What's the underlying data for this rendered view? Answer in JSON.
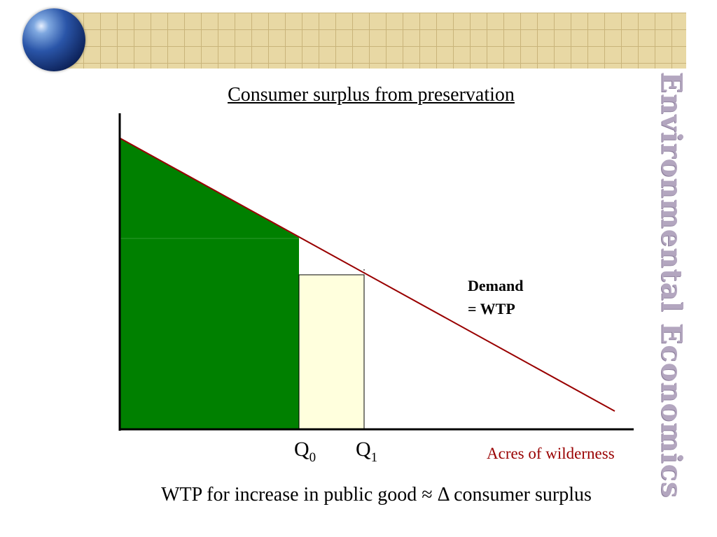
{
  "header": {
    "side_title": "Environmental Economics"
  },
  "slide": {
    "title": "Consumer surplus from preservation",
    "caption": "WTP for increase in public good ≈ Δ consumer surplus"
  },
  "diagram": {
    "demand_label_line1": "Demand",
    "demand_label_line2": "= WTP",
    "q0_main": "Q",
    "q0_sub": "0",
    "q1_main": "Q",
    "q1_sub": "1",
    "x_axis_label": "Acres of wilderness",
    "colors": {
      "surplus_fill": "#008000",
      "increase_fill": "#ffffdd",
      "demand_line": "#990000",
      "axis": "#000000",
      "x_label": "#990000"
    }
  }
}
